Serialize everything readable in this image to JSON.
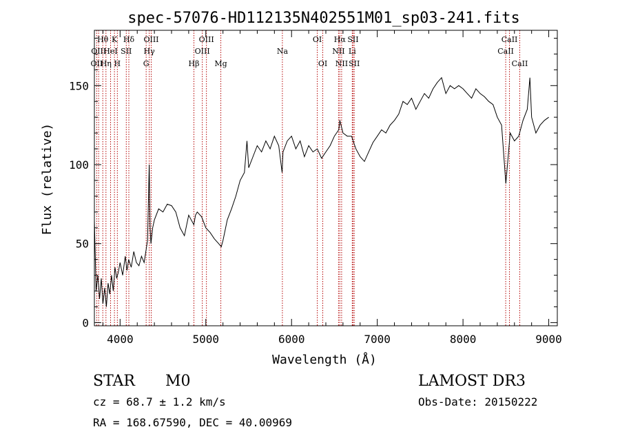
{
  "chart_data": {
    "type": "line",
    "title": "spec-57076-HD112135N402551M01_sp03-241.fits",
    "xlabel": "Wavelength (Å)",
    "ylabel": "Flux (relative)",
    "xlim": [
      3700,
      9100
    ],
    "ylim": [
      -2,
      185
    ],
    "x_ticks": [
      4000,
      5000,
      6000,
      7000,
      8000,
      9000
    ],
    "y_ticks": [
      0,
      50,
      100,
      150
    ],
    "grid": false,
    "series": [
      {
        "x": [
          3700,
          3720,
          3740,
          3760,
          3780,
          3800,
          3820,
          3840,
          3860,
          3880,
          3900,
          3920,
          3940,
          3960,
          3980,
          4000,
          4030,
          4060,
          4080,
          4100,
          4130,
          4160,
          4190,
          4220,
          4250,
          4280,
          4300,
          4320,
          4340,
          4350,
          4360,
          4380,
          4400,
          4450,
          4500,
          4550,
          4600,
          4650,
          4700,
          4750,
          4800,
          4830,
          4860,
          4880,
          4900,
          4950,
          5000,
          5050,
          5100,
          5150,
          5180,
          5200,
          5250,
          5300,
          5350,
          5400,
          5450,
          5480,
          5500,
          5550,
          5600,
          5650,
          5700,
          5750,
          5800,
          5850,
          5890,
          5900,
          5950,
          6000,
          6050,
          6100,
          6150,
          6200,
          6250,
          6300,
          6350,
          6400,
          6450,
          6500,
          6550,
          6563,
          6600,
          6650,
          6700,
          6750,
          6800,
          6850,
          6900,
          6950,
          7000,
          7050,
          7100,
          7150,
          7200,
          7250,
          7300,
          7350,
          7400,
          7450,
          7500,
          7550,
          7600,
          7650,
          7700,
          7750,
          7800,
          7850,
          7900,
          7950,
          8000,
          8050,
          8100,
          8150,
          8200,
          8250,
          8300,
          8350,
          8400,
          8450,
          8500,
          8550,
          8600,
          8650,
          8700,
          8750,
          8780,
          8800,
          8850,
          8900,
          8950,
          9000
        ],
        "values": [
          65,
          20,
          30,
          15,
          28,
          12,
          22,
          10,
          25,
          18,
          30,
          20,
          35,
          28,
          32,
          38,
          30,
          42,
          33,
          40,
          35,
          45,
          38,
          36,
          42,
          38,
          45,
          52,
          100,
          60,
          50,
          60,
          65,
          72,
          70,
          75,
          74,
          70,
          60,
          55,
          68,
          65,
          62,
          68,
          70,
          67,
          60,
          57,
          53,
          50,
          48,
          52,
          65,
          72,
          80,
          90,
          95,
          115,
          98,
          105,
          112,
          108,
          115,
          110,
          118,
          112,
          95,
          108,
          115,
          118,
          110,
          115,
          105,
          112,
          108,
          110,
          104,
          108,
          112,
          118,
          122,
          128,
          120,
          118,
          118,
          110,
          105,
          102,
          108,
          114,
          118,
          122,
          120,
          125,
          128,
          132,
          140,
          138,
          142,
          135,
          140,
          145,
          142,
          148,
          152,
          155,
          145,
          150,
          148,
          150,
          148,
          145,
          142,
          148,
          145,
          143,
          140,
          138,
          130,
          125,
          88,
          120,
          115,
          118,
          128,
          135,
          155,
          130,
          120,
          125,
          128,
          130
        ]
      }
    ],
    "line_markers": [
      {
        "x": 3727,
        "label": "OII",
        "row": 2
      },
      {
        "x": 3750,
        "label": "OIII",
        "row": 1
      },
      {
        "x": 3798,
        "label": "Hθ",
        "row": 0
      },
      {
        "x": 3835,
        "label": "Hη",
        "row": 2
      },
      {
        "x": 3889,
        "label": "HeI",
        "row": 1
      },
      {
        "x": 3934,
        "label": "K",
        "row": 0
      },
      {
        "x": 3968,
        "label": "H",
        "row": 2
      },
      {
        "x": 4072,
        "label": "SII",
        "row": 1
      },
      {
        "x": 4102,
        "label": "Hδ",
        "row": 0
      },
      {
        "x": 4304,
        "label": "G",
        "row": 2
      },
      {
        "x": 4340,
        "label": "Hγ",
        "row": 1
      },
      {
        "x": 4363,
        "label": "OIII",
        "row": 0
      },
      {
        "x": 4861,
        "label": "Hβ",
        "row": 2
      },
      {
        "x": 4959,
        "label": "OIII",
        "row": 1
      },
      {
        "x": 5007,
        "label": "OIII",
        "row": 0
      },
      {
        "x": 5175,
        "label": "Mg",
        "row": 2
      },
      {
        "x": 5893,
        "label": "Na",
        "row": 1
      },
      {
        "x": 6300,
        "label": "OI",
        "row": 0
      },
      {
        "x": 6364,
        "label": "OI",
        "row": 2
      },
      {
        "x": 6548,
        "label": "NII",
        "row": 1
      },
      {
        "x": 6563,
        "label": "Hα",
        "row": 0
      },
      {
        "x": 6584,
        "label": "NII",
        "row": 2
      },
      {
        "x": 6708,
        "label": "Li",
        "row": 1
      },
      {
        "x": 6717,
        "label": "SII",
        "row": 0
      },
      {
        "x": 6731,
        "label": "SII",
        "row": 2
      },
      {
        "x": 8498,
        "label": "CaII",
        "row": 1
      },
      {
        "x": 8542,
        "label": "CaII",
        "row": 0
      },
      {
        "x": 8662,
        "label": "CaII",
        "row": 2
      }
    ],
    "colors": {
      "spectrum": "#000000",
      "line_marker": "#b30000",
      "axes": "#000000"
    }
  },
  "info": {
    "class": "STAR",
    "subclass": "M0",
    "survey": "LAMOST DR3",
    "cz": "cz = 68.7 ± 1.2 km/s",
    "obs_date": "Obs-Date: 20150222",
    "coords": "RA = 168.67590, DEC =  40.00969"
  }
}
